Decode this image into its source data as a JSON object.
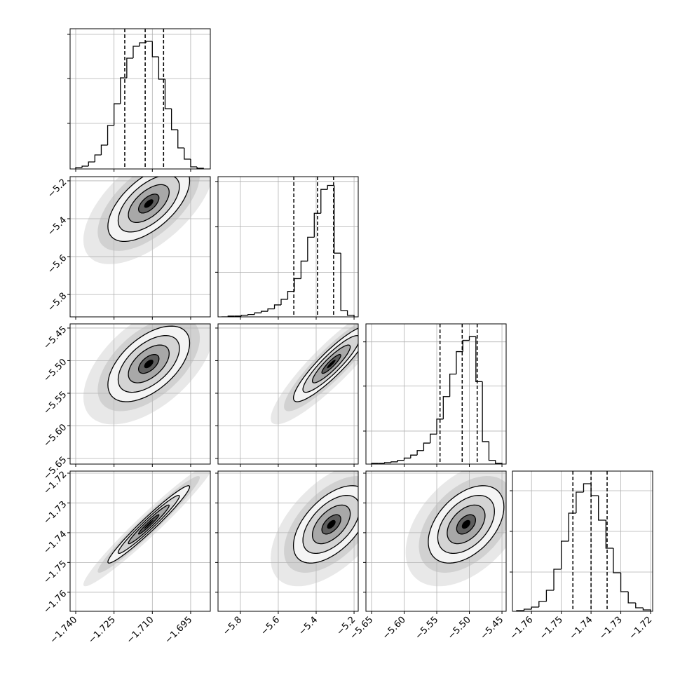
{
  "chart_data": {
    "type": "corner",
    "color": "#000000",
    "grid": true,
    "levels": [
      0.5,
      1,
      1.5,
      2
    ],
    "params": [
      {
        "xlim": [
          -1.7422,
          -1.6873
        ],
        "ticks": [
          {
            "value": -1.74,
            "label": "−1.740"
          },
          {
            "value": -1.725,
            "label": "−1.725"
          },
          {
            "value": -1.71,
            "label": "−1.710"
          },
          {
            "value": -1.695,
            "label": "−1.695"
          }
        ],
        "quantiles": [
          -1.7208,
          -1.7128,
          -1.7056
        ],
        "center": -1.7114,
        "sd": 0.008,
        "bins": [
          -1.74,
          -1.7375,
          -1.735,
          -1.7325,
          -1.73,
          -1.7275,
          -1.725,
          -1.7225,
          -1.72,
          -1.7175,
          -1.715,
          -1.7125,
          -1.71,
          -1.7075,
          -1.705,
          -1.7025,
          -1.7,
          -1.6975,
          -1.695,
          -1.6925,
          -1.69
        ],
        "counts": [
          2,
          4,
          10,
          20,
          34,
          62,
          93,
          130,
          158,
          175,
          180,
          182,
          160,
          128,
          86,
          56,
          30,
          14,
          3,
          1
        ],
        "hist_ylim": [
          0,
          200
        ],
        "hist_yticks": [
          65,
          129,
          192
        ]
      },
      {
        "xlim": [
          -5.918,
          -5.178
        ],
        "ticks": [
          {
            "value": -5.8,
            "label": "−5.8"
          },
          {
            "value": -5.6,
            "label": "−5.6"
          },
          {
            "value": -5.4,
            "label": "−5.4"
          },
          {
            "value": -5.2,
            "label": "−5.2"
          }
        ],
        "quantiles": [
          -5.518,
          -5.393,
          -5.308
        ],
        "center": -5.32,
        "sd": 0.1,
        "bins": [
          -5.9,
          -5.865,
          -5.83,
          -5.795,
          -5.76,
          -5.725,
          -5.69,
          -5.655,
          -5.62,
          -5.585,
          -5.55,
          -5.515,
          -5.48,
          -5.445,
          -5.41,
          -5.375,
          -5.34,
          -5.305,
          -5.27,
          -5.235,
          -5.2
        ],
        "counts": [
          0,
          1,
          1,
          2,
          3,
          5,
          7,
          10,
          15,
          22,
          32,
          48,
          70,
          100,
          130,
          160,
          165,
          80,
          8,
          2
        ],
        "hist_ylim": [
          0,
          176
        ],
        "hist_yticks": [
          56,
          113,
          170
        ]
      },
      {
        "xlim": [
          -5.6586,
          -5.4436
        ],
        "ticks": [
          {
            "value": -5.65,
            "label": "−5.65"
          },
          {
            "value": -5.6,
            "label": "−5.60"
          },
          {
            "value": -5.55,
            "label": "−5.55"
          },
          {
            "value": -5.5,
            "label": "−5.50"
          },
          {
            "value": -5.45,
            "label": "−5.45"
          }
        ],
        "quantiles": [
          -5.545,
          -5.511,
          -5.488
        ],
        "center": -5.505,
        "sd": 0.029,
        "bins": [
          -5.65,
          -5.64,
          -5.63,
          -5.62,
          -5.61,
          -5.6,
          -5.59,
          -5.58,
          -5.57,
          -5.56,
          -5.55,
          -5.54,
          -5.53,
          -5.52,
          -5.51,
          -5.5,
          -5.49,
          -5.48,
          -5.47,
          -5.46,
          -5.45
        ],
        "counts": [
          1,
          1,
          2,
          3,
          5,
          8,
          12,
          18,
          28,
          40,
          60,
          90,
          120,
          150,
          165,
          170,
          110,
          30,
          5,
          1
        ],
        "hist_ylim": [
          0,
          187
        ],
        "hist_yticks": [
          44,
          104,
          163
        ]
      },
      {
        "xlim": [
          -1.7664,
          -1.7193
        ],
        "ticks": [
          {
            "value": -1.76,
            "label": "−1.76"
          },
          {
            "value": -1.75,
            "label": "−1.75"
          },
          {
            "value": -1.74,
            "label": "−1.74"
          },
          {
            "value": -1.73,
            "label": "−1.73"
          },
          {
            "value": -1.72,
            "label": "−1.72"
          }
        ],
        "quantiles": [
          -1.7461,
          -1.74,
          -1.7346
        ],
        "center": -1.7372,
        "sd": 0.0065,
        "bins": [
          -1.765,
          -1.7625,
          -1.76,
          -1.7575,
          -1.755,
          -1.7525,
          -1.75,
          -1.7475,
          -1.745,
          -1.7425,
          -1.74,
          -1.7375,
          -1.735,
          -1.7325,
          -1.73,
          -1.7275,
          -1.725,
          -1.7225,
          -1.72
        ],
        "counts": [
          1,
          3,
          6,
          14,
          30,
          60,
          100,
          140,
          170,
          182,
          165,
          130,
          90,
          55,
          28,
          12,
          5,
          2
        ],
        "hist_ylim": [
          0,
          200
        ],
        "hist_yticks": [
          56,
          114,
          172
        ]
      }
    ],
    "correlations": [
      [],
      [
        0.6
      ],
      [
        0.55,
        0.9
      ],
      [
        0.97,
        0.55,
        0.45
      ]
    ]
  }
}
